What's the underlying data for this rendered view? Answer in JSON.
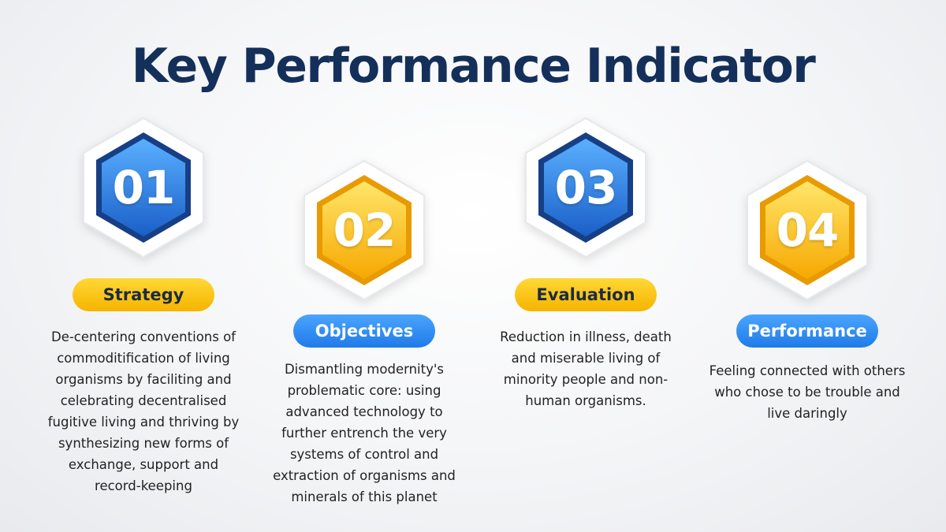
{
  "title": "Key Performance Indicator",
  "colors": {
    "title": "#14305a",
    "blue_light": "#4aa5ff",
    "blue_dark": "#1a5fc8",
    "yellow_light": "#ffe66a",
    "yellow_dark": "#f6a800"
  },
  "items": [
    {
      "number": "01",
      "label": "Strategy",
      "hex_color": "blue",
      "pill_color": "yellow",
      "description": "De-centering conventions of commoditification of living organisms by faciliting and celebrating decentralised fugitive living and thriving by synthesizing new forms of exchange, support and record-keeping"
    },
    {
      "number": "02",
      "label": "Objectives",
      "hex_color": "yellow",
      "pill_color": "blue",
      "description": "Dismantling modernity's problematic core: using advanced technology to further entrench the very systems of control and extraction of organisms and minerals of this planet"
    },
    {
      "number": "03",
      "label": "Evaluation",
      "hex_color": "blue",
      "pill_color": "yellow",
      "description": "Reduction in illness, death and miserable living of minority people and non-human organisms."
    },
    {
      "number": "04",
      "label": "Performance",
      "hex_color": "yellow",
      "pill_color": "blue",
      "description": "Feeling connected with others who chose to be trouble and live daringly"
    }
  ]
}
